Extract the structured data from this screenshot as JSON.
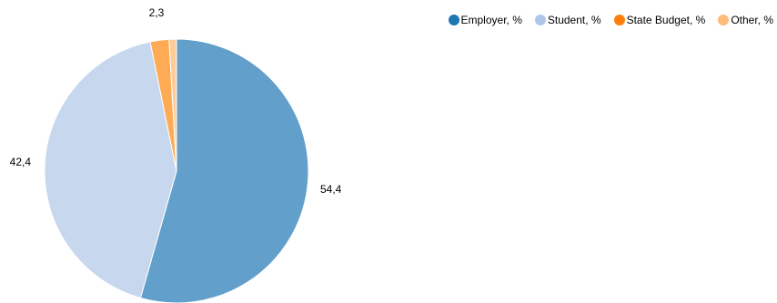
{
  "chart_data": {
    "type": "pie",
    "title": "",
    "series": [
      {
        "name": "",
        "slices": [
          {
            "label": "Employer, %",
            "value": 54.4,
            "data_label": "54,4",
            "color": "#629fca",
            "legend_color": "#1f77b4"
          },
          {
            "label": "Student, %",
            "value": 42.4,
            "data_label": "42,4",
            "color": "#c6d7ee",
            "legend_color": "#aec7e8"
          },
          {
            "label": "State Budget, %",
            "value": 2.3,
            "data_label": "2,3",
            "color": "#ffaa55",
            "legend_color": "#ff7f0e"
          },
          {
            "label": "Other, %",
            "value": 0.9,
            "data_label": "",
            "color": "#ffcc99",
            "legend_color": "#ffbb78"
          }
        ]
      }
    ],
    "legend_position": "top-right",
    "start_angle": "12 o'clock",
    "direction": "clockwise"
  }
}
